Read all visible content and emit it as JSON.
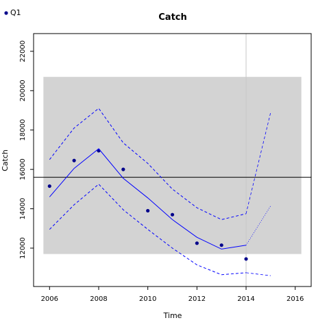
{
  "chart_data": {
    "type": "line",
    "title": "Catch",
    "xlabel": "Time",
    "ylabel": "Catch",
    "xlim": [
      2005.35,
      2016.65
    ],
    "ylim": [
      10050,
      22900
    ],
    "x_ticks": [
      2006,
      2008,
      2010,
      2012,
      2014,
      2016
    ],
    "y_ticks": [
      12000,
      14000,
      16000,
      18000,
      20000,
      22000
    ],
    "x_tick_labels": [
      "2006",
      "2008",
      "2010",
      "2012",
      "2014",
      "2016"
    ],
    "y_tick_labels": [
      "12000",
      "14000",
      "16000",
      "18000",
      "20000",
      "22000"
    ],
    "grid": false,
    "legend": {
      "placement": "top-left",
      "entries": [
        "Q1"
      ]
    },
    "band": {
      "x_range": [
        2005.75,
        2016.25
      ],
      "y_range": [
        11700,
        20700
      ],
      "color": "#d3d3d3"
    },
    "mean_line": {
      "y": 15600,
      "color": "#000000"
    },
    "reference_vline": {
      "x": 2014,
      "color": "#c8c8c8"
    },
    "series": [
      {
        "name": "Q1",
        "kind": "points",
        "color": "#00008b",
        "x": [
          2006,
          2007,
          2008,
          2009,
          2010,
          2011,
          2012,
          2013,
          2014
        ],
        "values": [
          15150,
          16450,
          16950,
          16000,
          13900,
          13700,
          12250,
          12150,
          11450
        ]
      },
      {
        "kind": "fit",
        "color": "#0000ff",
        "style": "solid",
        "x": [
          2006,
          2007,
          2008,
          2009,
          2010,
          2011,
          2012,
          2013,
          2014
        ],
        "values": [
          14600,
          16050,
          17050,
          15550,
          14550,
          13450,
          12550,
          11950,
          12150
        ]
      },
      {
        "kind": "upper",
        "color": "#0000ff",
        "style": "dashed",
        "x": [
          2006,
          2007,
          2008,
          2009,
          2010,
          2011,
          2012,
          2013,
          2014
        ],
        "values": [
          16500,
          18100,
          19100,
          17350,
          16300,
          15000,
          14050,
          13450,
          13750
        ]
      },
      {
        "kind": "lower",
        "color": "#0000ff",
        "style": "dashed",
        "x": [
          2006,
          2007,
          2008,
          2009,
          2010,
          2011,
          2012,
          2013,
          2014
        ],
        "values": [
          12950,
          14200,
          15250,
          13950,
          12950,
          12000,
          11150,
          10650,
          10750
        ]
      },
      {
        "kind": "forecast-upper",
        "color": "#0000ff",
        "style": "dashed",
        "x": [
          2014,
          2015
        ],
        "values": [
          13750,
          18900
        ]
      },
      {
        "kind": "forecast-mean",
        "color": "#0000ff",
        "style": "dotted",
        "x": [
          2014,
          2015
        ],
        "values": [
          12150,
          14150
        ]
      },
      {
        "kind": "forecast-lower",
        "color": "#0000ff",
        "style": "dashed",
        "x": [
          2014,
          2015
        ],
        "values": [
          10750,
          10600
        ]
      }
    ]
  }
}
